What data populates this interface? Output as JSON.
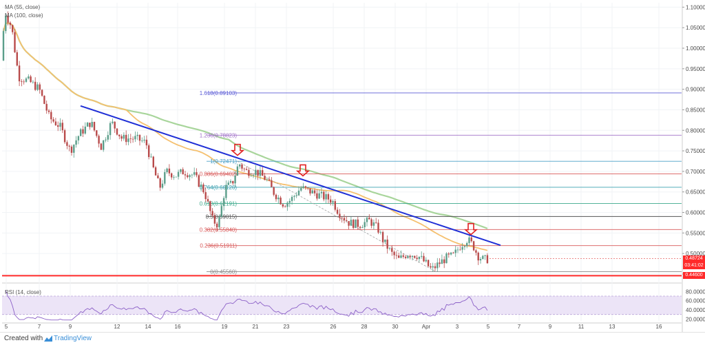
{
  "chart_data": [
    {
      "type": "candlestick",
      "indicators": [
        {
          "name": "MA (55, close)",
          "color": "#f5c06f"
        },
        {
          "name": "MA (100, close)",
          "color": "#a8d59b"
        }
      ],
      "y_ticks": [
        "1.10000",
        "1.05000",
        "1.00000",
        "0.95000",
        "0.90000",
        "0.85000",
        "0.80000",
        "0.75000",
        "0.70000",
        "0.65000",
        "0.60000",
        "0.55000",
        "0.50000",
        "0.45000"
      ],
      "ylim": [
        0.4348,
        1.1107
      ],
      "x_ticks": [
        "5",
        "7",
        "9",
        "12",
        "14",
        "16",
        "19",
        "21",
        "23",
        "26",
        "28",
        "30",
        "Apr",
        "3",
        "5",
        "7",
        "9",
        "11",
        "13",
        "16"
      ],
      "fib_levels": [
        {
          "label": "1.618(0.89103)",
          "value": 0.89103,
          "color": "#5b5bd6"
        },
        {
          "label": "1.236(0.78823)",
          "value": 0.78823,
          "color": "#a070c8"
        },
        {
          "label": "1(0.72471)",
          "value": 0.72471,
          "color": "#4aa0c8"
        },
        {
          "label": "0.886(0.69402)",
          "value": 0.69402,
          "color": "#d85858"
        },
        {
          "label": "0.764(0.66126)",
          "value": 0.66126,
          "color": "#3aa0b0"
        },
        {
          "label": "0.618(0.62191)",
          "value": 0.62191,
          "color": "#3aa88a"
        },
        {
          "label": "0.5(0.59015)",
          "value": 0.59015,
          "color": "#555555"
        },
        {
          "label": "0.382(0.55840)",
          "value": 0.5584,
          "color": "#d85858"
        },
        {
          "label": "0.236(0.51911)",
          "value": 0.51911,
          "color": "#d85858"
        },
        {
          "label": "0(0.45560)",
          "value": 0.4556,
          "color": "#888888"
        }
      ],
      "support_level": 0.446,
      "price_labels": [
        {
          "text": "0.48724",
          "value": 0.48724,
          "color": "#ff2a2a"
        },
        {
          "text": "03:41:02",
          "value": 0.4708,
          "color": "#ff2a2a"
        },
        {
          "text": "0.44600",
          "value": 0.446,
          "color": "#ff2a2a"
        }
      ],
      "trendline": {
        "from": {
          "x": 117,
          "y": 0.8595
        },
        "to": {
          "x": 727,
          "y": 0.52
        },
        "color": "#1f2fd6"
      },
      "arrows": [
        {
          "x": 345,
          "y": 0.739
        },
        {
          "x": 440,
          "y": 0.689
        },
        {
          "x": 684,
          "y": 0.546
        }
      ]
    },
    {
      "type": "line",
      "title": "RSI (14, close)",
      "y_ticks": [
        "80.0000",
        "60.0000",
        "40.0000",
        "20.0000"
      ],
      "ylim": [
        16,
        88
      ],
      "band": [
        30,
        70
      ]
    }
  ],
  "footer": {
    "created": "Created with",
    "brand": "TradingView"
  }
}
